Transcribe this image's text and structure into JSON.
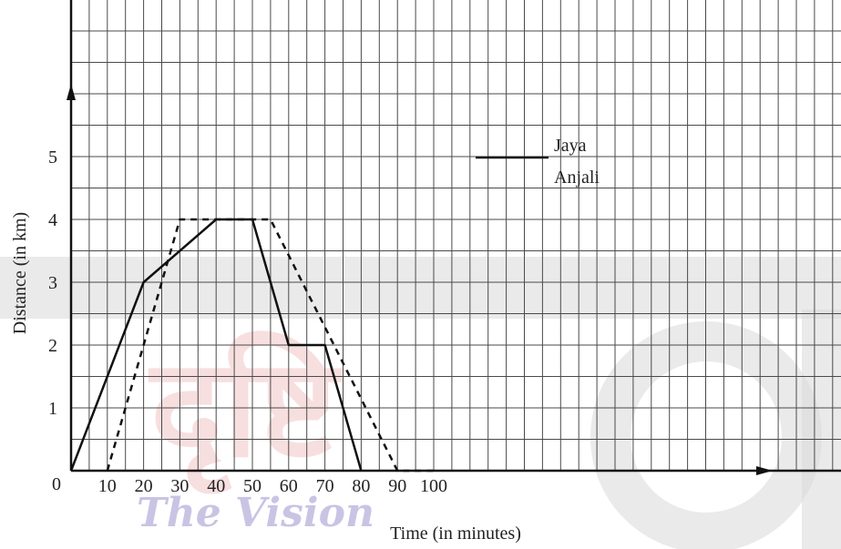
{
  "chart_data": {
    "type": "line",
    "title": "",
    "xlabel": "Time (in minutes)",
    "ylabel": "Distance (in km)",
    "xlim": [
      0,
      105
    ],
    "ylim": [
      0,
      6
    ],
    "x_ticks": [
      "10",
      "20",
      "30",
      "40",
      "50",
      "60",
      "70",
      "80",
      "90",
      "100"
    ],
    "y_ticks": [
      "1",
      "2",
      "3",
      "4",
      "5"
    ],
    "origin_label": "0",
    "grid": true,
    "legend_placement": "center-right",
    "series": [
      {
        "name": "Jaya",
        "style": "solid",
        "color": "#111111",
        "x": [
          0,
          20,
          40,
          50,
          60,
          70,
          80
        ],
        "y": [
          0,
          3,
          4,
          4,
          2,
          2,
          0
        ]
      },
      {
        "name": "Anjali",
        "style": "dashed",
        "color": "#111111",
        "x": [
          10,
          30,
          55,
          90,
          100
        ],
        "y": [
          0,
          4,
          4,
          0,
          0
        ]
      }
    ]
  },
  "watermark": {
    "logo_text": "दृष्टि",
    "tagline": "The Vision",
    "logo_color": "#f3c6c6",
    "tagline_color": "#c9c4e4"
  }
}
